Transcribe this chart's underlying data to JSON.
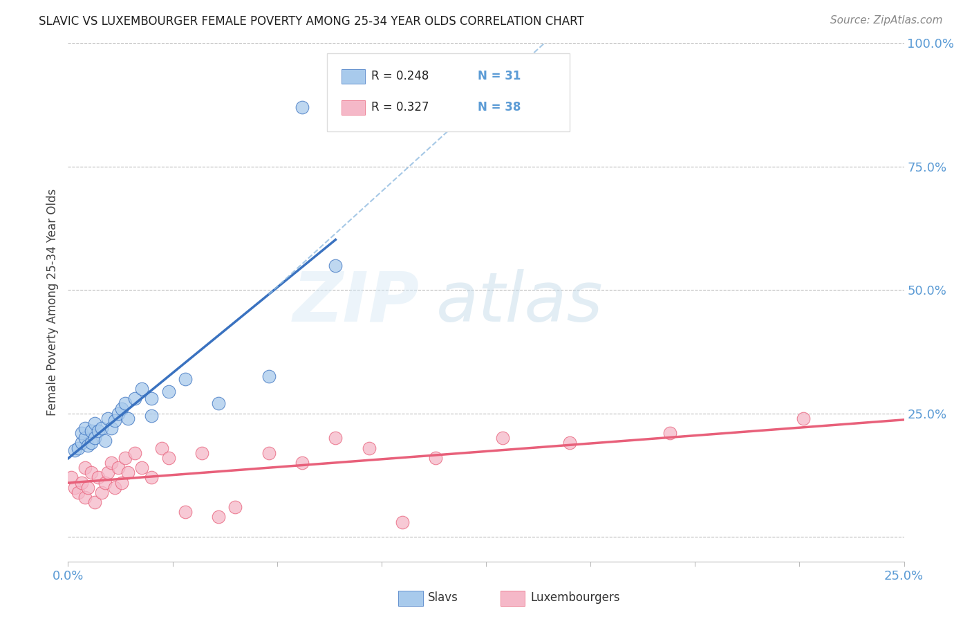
{
  "title": "SLAVIC VS LUXEMBOURGER FEMALE POVERTY AMONG 25-34 YEAR OLDS CORRELATION CHART",
  "source": "Source: ZipAtlas.com",
  "ylabel": "Female Poverty Among 25-34 Year Olds",
  "xlim": [
    0.0,
    0.25
  ],
  "ylim": [
    -0.05,
    1.0
  ],
  "watermark_zip": "ZIP",
  "watermark_atlas": "atlas",
  "slav_color": "#A8CAEC",
  "lux_color": "#F5B8C8",
  "slav_line_color": "#3A72C0",
  "lux_line_color": "#E8607A",
  "dashed_line_color": "#90BBE0",
  "slavs_x": [
    0.002,
    0.003,
    0.004,
    0.004,
    0.005,
    0.005,
    0.006,
    0.007,
    0.007,
    0.008,
    0.008,
    0.009,
    0.01,
    0.011,
    0.012,
    0.013,
    0.014,
    0.015,
    0.016,
    0.017,
    0.018,
    0.02,
    0.022,
    0.025,
    0.03,
    0.035,
    0.045,
    0.06,
    0.07,
    0.08,
    0.025
  ],
  "slavs_y": [
    0.175,
    0.18,
    0.19,
    0.21,
    0.2,
    0.22,
    0.185,
    0.19,
    0.215,
    0.2,
    0.23,
    0.215,
    0.22,
    0.195,
    0.24,
    0.22,
    0.235,
    0.25,
    0.26,
    0.27,
    0.24,
    0.28,
    0.3,
    0.28,
    0.295,
    0.32,
    0.27,
    0.325,
    0.87,
    0.55,
    0.245
  ],
  "lux_x": [
    0.001,
    0.002,
    0.003,
    0.004,
    0.005,
    0.005,
    0.006,
    0.007,
    0.008,
    0.009,
    0.01,
    0.011,
    0.012,
    0.013,
    0.014,
    0.015,
    0.016,
    0.017,
    0.018,
    0.02,
    0.022,
    0.025,
    0.028,
    0.03,
    0.035,
    0.04,
    0.045,
    0.05,
    0.06,
    0.07,
    0.08,
    0.09,
    0.1,
    0.11,
    0.13,
    0.15,
    0.18,
    0.22
  ],
  "lux_y": [
    0.12,
    0.1,
    0.09,
    0.11,
    0.08,
    0.14,
    0.1,
    0.13,
    0.07,
    0.12,
    0.09,
    0.11,
    0.13,
    0.15,
    0.1,
    0.14,
    0.11,
    0.16,
    0.13,
    0.17,
    0.14,
    0.12,
    0.18,
    0.16,
    0.05,
    0.17,
    0.04,
    0.06,
    0.17,
    0.15,
    0.2,
    0.18,
    0.03,
    0.16,
    0.2,
    0.19,
    0.21,
    0.24
  ],
  "background_color": "#FFFFFF",
  "grid_color": "#BBBBBB",
  "right_axis_color": "#5B9BD5",
  "title_fontsize": 12,
  "source_fontsize": 11,
  "tick_label_fontsize": 13
}
